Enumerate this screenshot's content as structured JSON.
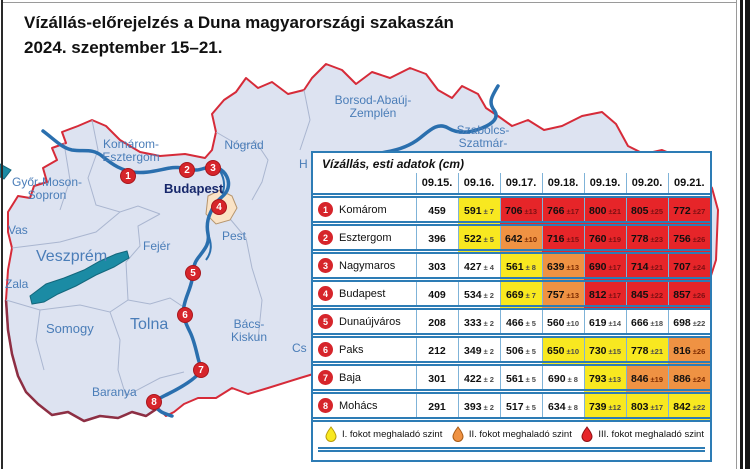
{
  "header": {
    "title_line1": "Vízállás-előrejelzés a Duna magyarországi szakaszán",
    "title_line2": "2024. szeptember 15–21."
  },
  "map": {
    "labels": {
      "gyor_moson_sopron": {
        "line1": "Győr-Moson-",
        "line2": "Sopron"
      },
      "komarom_esztergom": {
        "line1": "Komárom-",
        "line2": "Esztergom"
      },
      "nograd": {
        "line1": "Nógrád"
      },
      "borsod_abauj_zemplen": {
        "line1": "Borsod-Abaúj-",
        "line2": "Zemplén"
      },
      "szabolcs_szatmar": {
        "line1": "Szabolcs-",
        "line2": "Szatmár-"
      },
      "heves_partial": {
        "line1": "H"
      },
      "vas": {
        "line1": "Vas"
      },
      "veszprem": {
        "line1": "Veszprém"
      },
      "zala": {
        "line1": "Zala"
      },
      "fejer": {
        "line1": "Fejér"
      },
      "pest": {
        "line1": "Pest"
      },
      "somogy": {
        "line1": "Somogy"
      },
      "tolna": {
        "line1": "Tolna"
      },
      "bacs_kiskun": {
        "line1": "Bács-",
        "line2": "Kiskun"
      },
      "csongrad_partial": {
        "line1": "Cs"
      },
      "baranya": {
        "line1": "Baranya"
      },
      "budapest": {
        "line1": "Budapest"
      }
    }
  },
  "table": {
    "title": "Vízállás, esti adatok (cm)",
    "columns": [
      "09.15.",
      "09.16.",
      "09.17.",
      "09.18.",
      "09.19.",
      "09.20.",
      "09.21."
    ],
    "rows": [
      {
        "num": "1",
        "station": "Komárom",
        "values": [
          {
            "v": "459",
            "lvl": 0
          },
          {
            "v": "591",
            "pm": "± 7",
            "lvl": 1
          },
          {
            "v": "706",
            "pm": "±13",
            "lvl": 3
          },
          {
            "v": "766",
            "pm": "±17",
            "lvl": 3
          },
          {
            "v": "800",
            "pm": "±21",
            "lvl": 3
          },
          {
            "v": "805",
            "pm": "±25",
            "lvl": 3
          },
          {
            "v": "772",
            "pm": "±27",
            "lvl": 3
          }
        ]
      },
      {
        "num": "2",
        "station": "Esztergom",
        "values": [
          {
            "v": "396",
            "lvl": 0
          },
          {
            "v": "522",
            "pm": "± 5",
            "lvl": 1
          },
          {
            "v": "642",
            "pm": "±10",
            "lvl": 2
          },
          {
            "v": "716",
            "pm": "±15",
            "lvl": 3
          },
          {
            "v": "760",
            "pm": "±19",
            "lvl": 3
          },
          {
            "v": "778",
            "pm": "±23",
            "lvl": 3
          },
          {
            "v": "756",
            "pm": "±26",
            "lvl": 3
          }
        ]
      },
      {
        "num": "3",
        "station": "Nagymaros",
        "values": [
          {
            "v": "303",
            "lvl": 0
          },
          {
            "v": "427",
            "pm": "± 4",
            "lvl": 0
          },
          {
            "v": "561",
            "pm": "± 8",
            "lvl": 1
          },
          {
            "v": "639",
            "pm": "±13",
            "lvl": 2
          },
          {
            "v": "690",
            "pm": "±17",
            "lvl": 3
          },
          {
            "v": "714",
            "pm": "±21",
            "lvl": 3
          },
          {
            "v": "707",
            "pm": "±24",
            "lvl": 3
          }
        ]
      },
      {
        "num": "4",
        "station": "Budapest",
        "values": [
          {
            "v": "409",
            "lvl": 0
          },
          {
            "v": "534",
            "pm": "± 2",
            "lvl": 0
          },
          {
            "v": "669",
            "pm": "± 7",
            "lvl": 1
          },
          {
            "v": "757",
            "pm": "±13",
            "lvl": 2
          },
          {
            "v": "812",
            "pm": "±17",
            "lvl": 3
          },
          {
            "v": "845",
            "pm": "±22",
            "lvl": 3
          },
          {
            "v": "857",
            "pm": "±26",
            "lvl": 3
          }
        ]
      },
      {
        "num": "5",
        "station": "Dunaújváros",
        "values": [
          {
            "v": "208",
            "lvl": 0
          },
          {
            "v": "333",
            "pm": "± 2",
            "lvl": 0
          },
          {
            "v": "466",
            "pm": "± 5",
            "lvl": 0
          },
          {
            "v": "560",
            "pm": "±10",
            "lvl": 0
          },
          {
            "v": "619",
            "pm": "±14",
            "lvl": 0
          },
          {
            "v": "666",
            "pm": "±18",
            "lvl": 0
          },
          {
            "v": "698",
            "pm": "±22",
            "lvl": 0
          }
        ]
      },
      {
        "num": "6",
        "station": "Paks",
        "values": [
          {
            "v": "212",
            "lvl": 0
          },
          {
            "v": "349",
            "pm": "± 2",
            "lvl": 0
          },
          {
            "v": "506",
            "pm": "± 5",
            "lvl": 0
          },
          {
            "v": "650",
            "pm": "±10",
            "lvl": 1
          },
          {
            "v": "730",
            "pm": "±15",
            "lvl": 1
          },
          {
            "v": "778",
            "pm": "±21",
            "lvl": 1
          },
          {
            "v": "816",
            "pm": "±26",
            "lvl": 2
          }
        ]
      },
      {
        "num": "7",
        "station": "Baja",
        "values": [
          {
            "v": "301",
            "lvl": 0
          },
          {
            "v": "422",
            "pm": "± 2",
            "lvl": 0
          },
          {
            "v": "561",
            "pm": "± 5",
            "lvl": 0
          },
          {
            "v": "690",
            "pm": "± 8",
            "lvl": 0
          },
          {
            "v": "793",
            "pm": "±13",
            "lvl": 1
          },
          {
            "v": "846",
            "pm": "±19",
            "lvl": 2
          },
          {
            "v": "886",
            "pm": "±24",
            "lvl": 2
          }
        ]
      },
      {
        "num": "8",
        "station": "Mohács",
        "values": [
          {
            "v": "291",
            "lvl": 0
          },
          {
            "v": "393",
            "pm": "± 2",
            "lvl": 0
          },
          {
            "v": "517",
            "pm": "± 5",
            "lvl": 0
          },
          {
            "v": "634",
            "pm": "± 8",
            "lvl": 0
          },
          {
            "v": "739",
            "pm": "±12",
            "lvl": 1
          },
          {
            "v": "803",
            "pm": "±17",
            "lvl": 1
          },
          {
            "v": "842",
            "pm": "±22",
            "lvl": 1
          }
        ]
      }
    ],
    "legend": [
      {
        "label": "I. fokot meghaladó szint",
        "color": "#f8e820"
      },
      {
        "label": "II. fokot meghaladó szint",
        "color": "#ef9243"
      },
      {
        "label": "III. fokot meghaladó szint",
        "color": "#e62529"
      }
    ]
  },
  "colors": {
    "level1_yellow": "#f8e820",
    "level2_orange": "#ef9243",
    "level3_red": "#e62529",
    "marker_red": "#d6252b",
    "river_blue": "#2a6fae",
    "country_border_red": "#d62b39",
    "map_fill": "#dde3f1",
    "table_border_blue": "#2d7cb5",
    "lake_teal": "#1b8ba4"
  }
}
